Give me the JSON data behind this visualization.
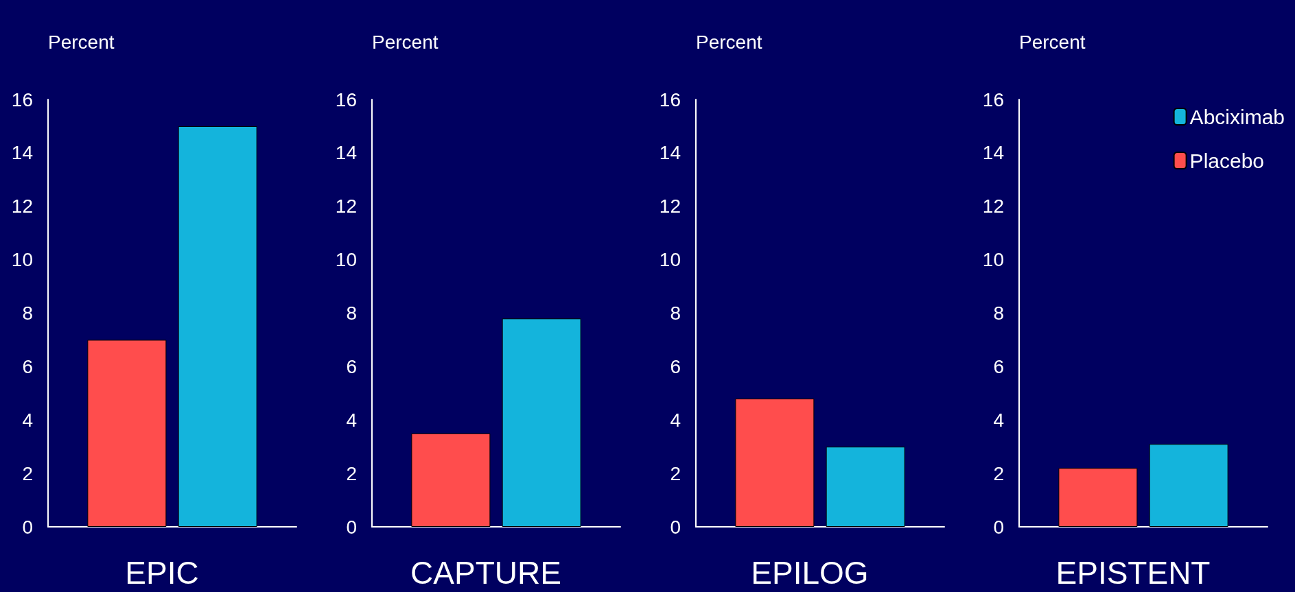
{
  "chart_data": [
    {
      "type": "bar",
      "title": "EPIC",
      "ylabel": "Percent",
      "categories": [
        null
      ],
      "ylim": [
        0,
        16
      ],
      "yticks": [
        0,
        2,
        4,
        6,
        8,
        10,
        12,
        14,
        16
      ],
      "series": [
        {
          "color": "#ff4d4d",
          "values": [
            7.0
          ]
        },
        {
          "color": "#14b4dc",
          "values": [
            15.0
          ]
        }
      ]
    },
    {
      "type": "bar",
      "title": "CAPTURE",
      "ylabel": "Percent",
      "categories": [
        null
      ],
      "ylim": [
        0,
        16
      ],
      "yticks": [
        0,
        2,
        4,
        6,
        8,
        10,
        12,
        14,
        16
      ],
      "series": [
        {
          "color": "#ff4d4d",
          "values": [
            3.5
          ]
        },
        {
          "color": "#14b4dc",
          "values": [
            7.8
          ]
        }
      ]
    },
    {
      "type": "bar",
      "title": "EPILOG",
      "ylabel": "Percent",
      "categories": [
        null
      ],
      "ylim": [
        0,
        16
      ],
      "yticks": [
        0,
        2,
        4,
        6,
        8,
        10,
        12,
        14,
        16
      ],
      "series": [
        {
          "color": "#ff4d4d",
          "values": [
            4.8
          ]
        },
        {
          "color": "#14b4dc",
          "values": [
            3.0
          ]
        }
      ]
    },
    {
      "type": "bar",
      "title": "EPISTENT",
      "ylabel": "Percent",
      "categories": [
        null
      ],
      "ylim": [
        0,
        16
      ],
      "yticks": [
        0,
        2,
        4,
        6,
        8,
        10,
        12,
        14,
        16
      ],
      "legend": "top right",
      "series": [
        {
          "name": "Placebo",
          "color": "#ff4d4d",
          "values": [
            2.2
          ]
        },
        {
          "name": "Abciximab",
          "color": "#14b4dc",
          "values": [
            3.1
          ]
        }
      ]
    }
  ]
}
